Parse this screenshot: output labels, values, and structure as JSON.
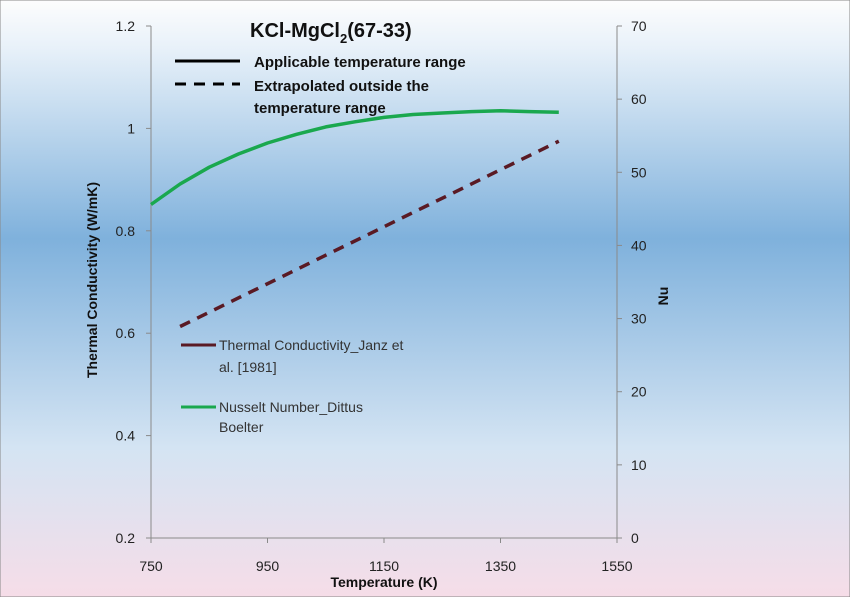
{
  "chart_data": {
    "type": "line",
    "title_main": "KCl-MgCl",
    "title_sub": "2",
    "title_tail": "(67-33)",
    "xlabel": "Temperature (K)",
    "ylabel_left": "Thermal Conductivity (W/mK)",
    "ylabel_right": "Nu",
    "xlim": [
      750,
      1550
    ],
    "ylim_left": [
      0.2,
      1.2
    ],
    "ylim_right": [
      0,
      70
    ],
    "x_ticks": [
      "750",
      "950",
      "1150",
      "1350",
      "1550"
    ],
    "y_left_ticks": [
      "0.2",
      "0.4",
      "0.6",
      "0.8",
      "1",
      "1.2"
    ],
    "y_right_ticks": [
      "0",
      "10",
      "20",
      "30",
      "40",
      "50",
      "60",
      "70"
    ],
    "style_legend": [
      {
        "label_line1": "Applicable temperature range",
        "label_line2": "",
        "dash": "solid"
      },
      {
        "label_line1": "Extrapolated outside the",
        "label_line2": "temperature range",
        "dash": "dashed"
      }
    ],
    "series": [
      {
        "name_line1": "Thermal Conductivity_Janz et",
        "name_line2": "al. [1981]",
        "axis": "left",
        "color": "#5a1a24",
        "dash": "dashed",
        "x": [
          800,
          1450
        ],
        "y": [
          0.613,
          0.975
        ]
      },
      {
        "name_line1": "Nusselt Number_Dittus",
        "name_line2": "Boelter",
        "axis": "right",
        "color": "#1aa84e",
        "dash": "solid",
        "x": [
          750,
          800,
          850,
          900,
          950,
          1000,
          1050,
          1100,
          1150,
          1200,
          1250,
          1300,
          1350,
          1400,
          1450
        ],
        "y": [
          45.6,
          48.4,
          50.7,
          52.5,
          54.0,
          55.2,
          56.2,
          56.9,
          57.5,
          57.9,
          58.1,
          58.3,
          58.4,
          58.3,
          58.2
        ]
      }
    ],
    "colors": {
      "background_top": "#fdfdfd",
      "background_mid": "#7fb1dc",
      "background_bottom": "#f6dde8"
    },
    "grid": false
  }
}
